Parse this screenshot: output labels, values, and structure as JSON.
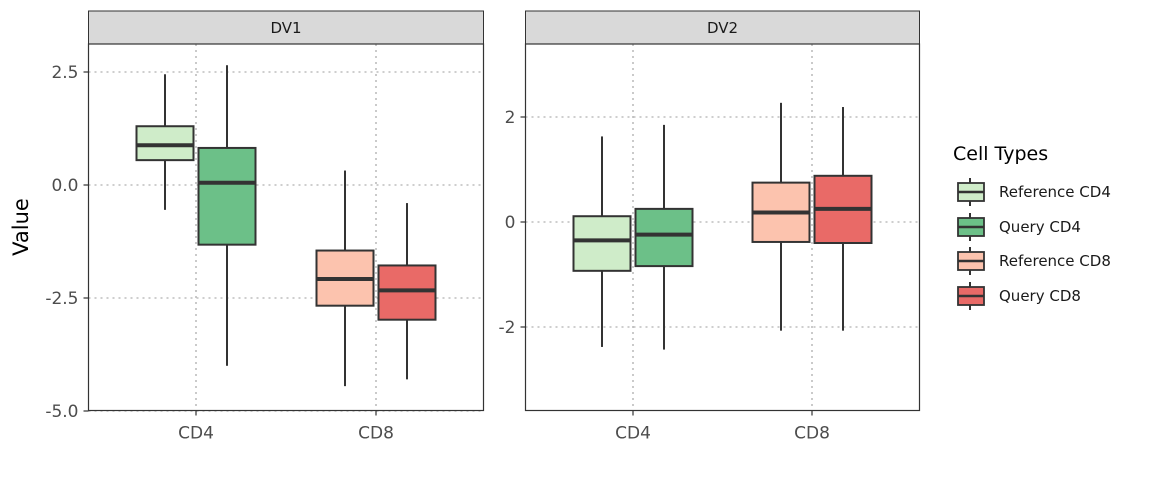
{
  "chart_data": {
    "type": "boxplot",
    "ylabel": "Value",
    "legend": {
      "title": "Cell Types",
      "placement": "right",
      "entries": [
        {
          "label": "Reference CD4",
          "color": "#cfecc9"
        },
        {
          "label": "Query CD4",
          "color": "#6cc088"
        },
        {
          "label": "Reference CD8",
          "color": "#fcc3ae"
        },
        {
          "label": "Query CD8",
          "color": "#e96a67"
        }
      ]
    },
    "grid": "dotted",
    "panels": [
      {
        "title": "DV1",
        "ylim": [
          -5.0,
          3.5
        ],
        "yticks": [
          2.5,
          0.0,
          -2.5,
          -5.0
        ],
        "ytick_labels": [
          "2.5",
          "0.0",
          "-2.5",
          "-5.0"
        ],
        "categories": [
          "CD4",
          "CD8"
        ],
        "boxes": [
          {
            "category": "CD4",
            "series": "Reference CD4",
            "min": -0.55,
            "q1": 0.55,
            "median": 0.88,
            "q3": 1.3,
            "max": 2.45
          },
          {
            "category": "CD4",
            "series": "Query CD4",
            "min": -4.0,
            "q1": -1.32,
            "median": 0.05,
            "q3": 0.82,
            "max": 2.65
          },
          {
            "category": "CD8",
            "series": "Reference CD8",
            "min": -4.45,
            "q1": -2.67,
            "median": -2.08,
            "q3": -1.45,
            "max": 0.32
          },
          {
            "category": "CD8",
            "series": "Query CD8",
            "min": -4.3,
            "q1": -2.98,
            "median": -2.33,
            "q3": -1.78,
            "max": -0.4
          }
        ]
      },
      {
        "title": "DV2",
        "ylim": [
          -3.55,
          3.35
        ],
        "yticks": [
          2,
          0,
          -2
        ],
        "ytick_labels": [
          "2",
          "0",
          "-2"
        ],
        "categories": [
          "CD4",
          "CD8"
        ],
        "boxes": [
          {
            "category": "CD4",
            "series": "Reference CD4",
            "min": -2.38,
            "q1": -0.93,
            "median": -0.35,
            "q3": 0.11,
            "max": 1.63
          },
          {
            "category": "CD4",
            "series": "Query CD4",
            "min": -2.43,
            "q1": -0.84,
            "median": -0.24,
            "q3": 0.25,
            "max": 1.85
          },
          {
            "category": "CD8",
            "series": "Reference CD8",
            "min": -2.07,
            "q1": -0.38,
            "median": 0.18,
            "q3": 0.75,
            "max": 2.27
          },
          {
            "category": "CD8",
            "series": "Query CD8",
            "min": -2.07,
            "q1": -0.4,
            "median": 0.25,
            "q3": 0.88,
            "max": 2.19
          }
        ]
      }
    ]
  }
}
